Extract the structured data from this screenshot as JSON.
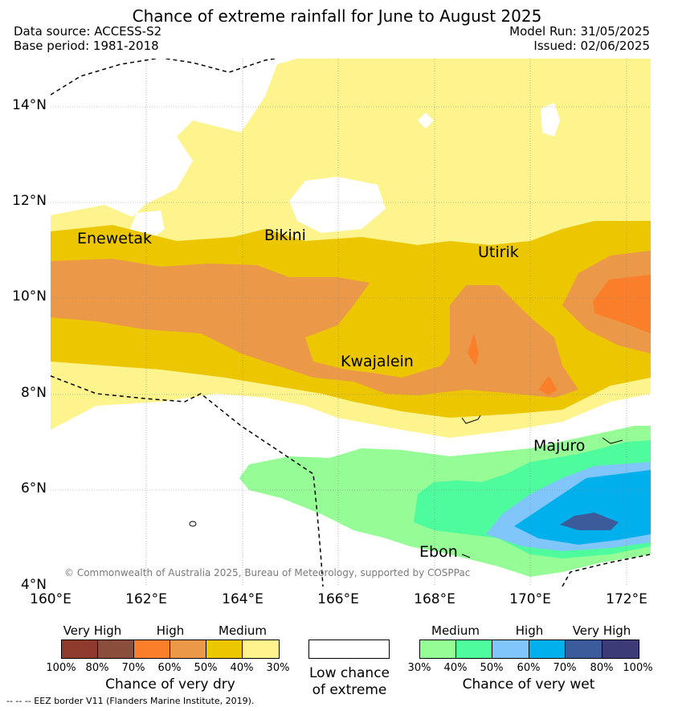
{
  "title": "Chance of extreme rainfall for June to August 2025",
  "meta": {
    "data_source": "Data source: ACCESS-S2",
    "base_period": "Base period: 1981-2018",
    "model_run": "Model Run: 31/05/2025",
    "issued": "Issued: 02/06/2025"
  },
  "map": {
    "lat_ticks": [
      "14°N",
      "12°N",
      "10°N",
      "8°N",
      "6°N",
      "4°N"
    ],
    "lon_ticks": [
      "160°E",
      "162°E",
      "164°E",
      "166°E",
      "168°E",
      "170°E",
      "172°E"
    ],
    "lat_range": [
      4,
      15
    ],
    "lon_range": [
      160,
      172.5
    ],
    "places": [
      "Enewetak",
      "Bikini",
      "Utirik",
      "Kwajalein",
      "Majuro",
      "Ebon"
    ],
    "copyright": "© Commonwealth of Australia 2025, Bureau of Meteorology, supported by COSPPac"
  },
  "legend": {
    "dry": {
      "categories": [
        "Very High",
        "High",
        "Medium"
      ],
      "percents": [
        "100%",
        "80%",
        "70%",
        "60%",
        "50%",
        "40%",
        "30%"
      ],
      "colors": [
        "#8e3b2e",
        "#8a4e3c",
        "#fb7f2b",
        "#eb9949",
        "#ecc700",
        "#fdf48e"
      ],
      "title": "Chance of very dry"
    },
    "low": {
      "label_line1": "Low chance",
      "label_line2": "of extreme"
    },
    "wet": {
      "categories": [
        "Medium",
        "High",
        "Very High"
      ],
      "percents": [
        "30%",
        "40%",
        "50%",
        "60%",
        "70%",
        "80%",
        "100%"
      ],
      "colors": [
        "#96fc96",
        "#4efc9e",
        "#81c6fa",
        "#00b0ec",
        "#3c5b9a",
        "#3d3b77"
      ],
      "title": "Chance of very wet"
    },
    "eez_note": "-- -- -- EEZ border V11 (Flanders Marine Institute, 2019)."
  }
}
